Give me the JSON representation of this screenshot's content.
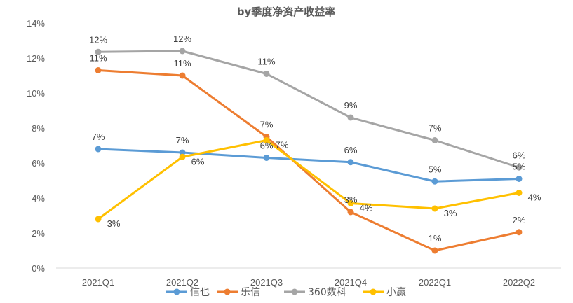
{
  "chart_data": {
    "type": "line",
    "title": "by季度净资产收益率",
    "categories": [
      "2021Q1",
      "2021Q2",
      "2021Q3",
      "2021Q4",
      "2022Q1",
      "2022Q2"
    ],
    "ylim": [
      0,
      14
    ],
    "yticks": [
      0,
      2,
      4,
      6,
      8,
      10,
      12,
      14
    ],
    "ytick_labels": [
      "0%",
      "2%",
      "4%",
      "6%",
      "8%",
      "10%",
      "12%",
      "14%"
    ],
    "grid": false,
    "legend_position": "bottom",
    "series": [
      {
        "name": "信也",
        "color": "#5B9BD5",
        "values": [
          6.8,
          6.6,
          6.3,
          6.05,
          4.95,
          5.1
        ],
        "labels": [
          "7%",
          "7%",
          "6%",
          "6%",
          "5%",
          "5%"
        ]
      },
      {
        "name": "乐信",
        "color": "#ED7D31",
        "values": [
          11.3,
          11.0,
          7.5,
          3.2,
          1.0,
          2.05
        ],
        "labels": [
          "11%",
          "11%",
          "7%",
          "3%",
          "1%",
          "2%"
        ]
      },
      {
        "name": "360数科",
        "color": "#A5A5A5",
        "values": [
          12.35,
          12.4,
          11.1,
          8.6,
          7.3,
          5.75
        ],
        "labels": [
          "12%",
          "12%",
          "11%",
          "9%",
          "7%",
          "6%"
        ]
      },
      {
        "name": "小赢",
        "color": "#FFC000",
        "values": [
          2.8,
          6.35,
          7.3,
          3.7,
          3.4,
          4.3
        ],
        "labels": [
          "3%",
          "6%",
          "7%",
          "4%",
          "3%",
          "4%"
        ]
      }
    ]
  }
}
